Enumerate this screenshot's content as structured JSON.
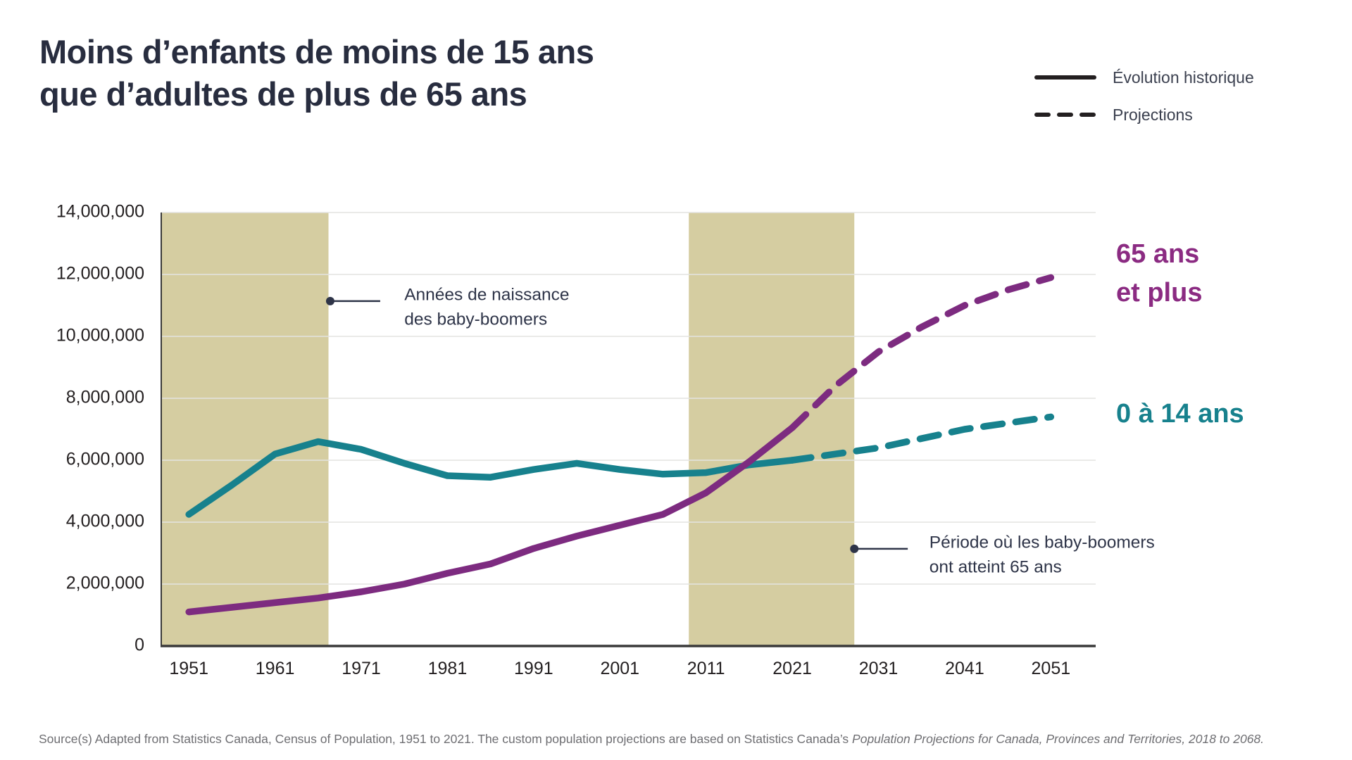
{
  "page": {
    "background": "#ffffff"
  },
  "title": {
    "line1": "Moins d’enfants de moins de 15 ans",
    "line2": "que d’adultes de plus de 65 ans",
    "color": "#282d3f"
  },
  "legend": {
    "items": [
      {
        "label": "Évolution historique",
        "style": "solid"
      },
      {
        "label": "Projections",
        "style": "dashed"
      }
    ],
    "line_color": "#231f20",
    "text_color": "#3b404f"
  },
  "chart_data": {
    "type": "line",
    "xlim": [
      1947.8,
      2056.2
    ],
    "ylim": [
      0,
      14000000
    ],
    "grid": "horizontal",
    "gridline_color": "#e3e3e1",
    "axis_color": "#3a3a3a",
    "tick_label_color": "#231f20",
    "yticks": [
      {
        "value": 0,
        "label": "0"
      },
      {
        "value": 2000000,
        "label": "2,000,000"
      },
      {
        "value": 4000000,
        "label": "4,000,000"
      },
      {
        "value": 6000000,
        "label": "6,000,000"
      },
      {
        "value": 8000000,
        "label": "8,000,000"
      },
      {
        "value": 10000000,
        "label": "10,000,000"
      },
      {
        "value": 12000000,
        "label": "12,000,000"
      },
      {
        "value": 14000000,
        "label": "14,000,000"
      }
    ],
    "xticks": [
      {
        "value": 1951,
        "label": "1951"
      },
      {
        "value": 1961,
        "label": "1961"
      },
      {
        "value": 1971,
        "label": "1971"
      },
      {
        "value": 1981,
        "label": "1981"
      },
      {
        "value": 1991,
        "label": "1991"
      },
      {
        "value": 2001,
        "label": "2001"
      },
      {
        "value": 2011,
        "label": "2011"
      },
      {
        "value": 2021,
        "label": "2021"
      },
      {
        "value": 2031,
        "label": "2031"
      },
      {
        "value": 2041,
        "label": "2041"
      },
      {
        "value": 2051,
        "label": "2051"
      }
    ],
    "bands": {
      "color": "#d5cda1",
      "regions": [
        {
          "from": 1947.8,
          "to": 1967.2
        },
        {
          "from": 2009.0,
          "to": 2028.2
        }
      ]
    },
    "series": [
      {
        "name": "0 à 14 ans",
        "label_lines": [
          "0 à 14 ans"
        ],
        "color": "#17818d",
        "label_color": "#17818d",
        "historical": {
          "x": [
            1951,
            1956,
            1961,
            1966,
            1971,
            1976,
            1981,
            1986,
            1991,
            1996,
            2001,
            2006,
            2011,
            2016,
            2021
          ],
          "y": [
            4250000,
            5200000,
            6200000,
            6600000,
            6350000,
            5900000,
            5500000,
            5450000,
            5700000,
            5900000,
            5700000,
            5550000,
            5600000,
            5850000,
            6000000
          ]
        },
        "projection": {
          "x": [
            2021,
            2026,
            2031,
            2036,
            2041,
            2046,
            2051
          ],
          "y": [
            6000000,
            6200000,
            6400000,
            6700000,
            7000000,
            7200000,
            7400000
          ]
        }
      },
      {
        "name": "65 ans et plus",
        "label_lines": [
          "65 ans",
          "et plus"
        ],
        "color": "#7d2b80",
        "label_color": "#8b2b82",
        "historical": {
          "x": [
            1951,
            1956,
            1961,
            1966,
            1971,
            1976,
            1981,
            1986,
            1991,
            1996,
            2001,
            2006,
            2011,
            2016,
            2021
          ],
          "y": [
            1100000,
            1250000,
            1400000,
            1550000,
            1750000,
            2000000,
            2350000,
            2650000,
            3150000,
            3550000,
            3900000,
            4250000,
            4950000,
            5950000,
            7050000
          ]
        },
        "projection": {
          "x": [
            2021,
            2026,
            2031,
            2036,
            2041,
            2046,
            2051
          ],
          "y": [
            7050000,
            8400000,
            9500000,
            10300000,
            11000000,
            11500000,
            11900000
          ]
        }
      }
    ],
    "annotations": [
      {
        "lines": [
          "Années de naissance",
          "des baby-boomers"
        ],
        "dot": {
          "year": 1967.4,
          "value": 11140000
        },
        "line_to_year": 1973.2,
        "text_year": 1976.0,
        "text_value": 11320000,
        "color": "#2e3448"
      },
      {
        "lines": [
          "Période où les baby-boomers",
          "ont atteint 65 ans"
        ],
        "dot": {
          "year": 2028.2,
          "value": 3140000
        },
        "line_to_year": 2034.4,
        "text_year": 2036.9,
        "text_value": 3320000,
        "color": "#2e3448"
      }
    ]
  },
  "source": {
    "prefix": "Source(s) Adapted from Statistics Canada, Census of Population, 1951 to 2021. The custom population projections are based on Statistics Canada’s ",
    "italic": "Population Projections for Canada, Provinces and Territories, 2018 to 2068.",
    "color": "#6e6e72"
  }
}
